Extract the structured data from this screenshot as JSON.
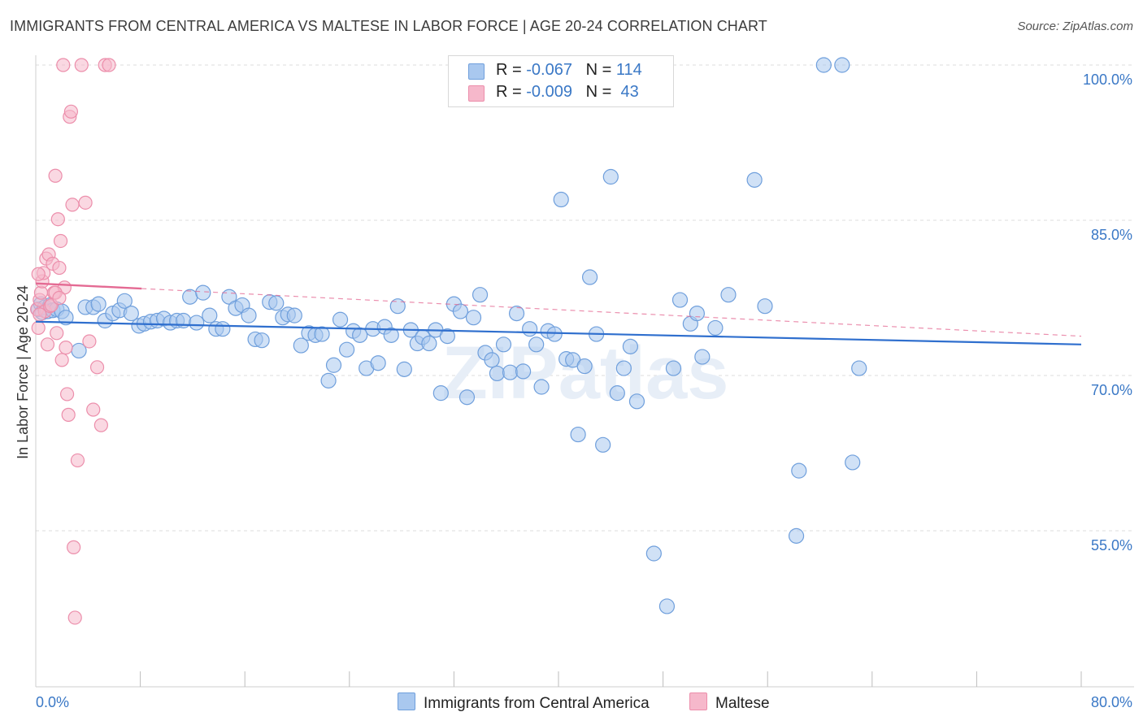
{
  "title": "IMMIGRANTS FROM CENTRAL AMERICA VS MALTESE IN LABOR FORCE | AGE 20-24 CORRELATION CHART",
  "source": "Source: ZipAtlas.com",
  "watermark": "ZIPatlas",
  "legend": {
    "rows": [
      {
        "r_label": "R =",
        "r_value": "-0.067",
        "n_label": "N =",
        "n_value": "114"
      },
      {
        "r_label": "R =",
        "r_value": "-0.009",
        "n_label": "N =",
        "n_value": "43"
      }
    ]
  },
  "bottom_legend": [
    {
      "label": "Immigrants from Central America"
    },
    {
      "label": "Maltese"
    }
  ],
  "chart_data": {
    "type": "scatter",
    "title": "IMMIGRANTS FROM CENTRAL AMERICA VS MALTESE IN LABOR FORCE | AGE 20-24 CORRELATION CHART",
    "xlabel": "",
    "ylabel": "In Labor Force | Age 20-24",
    "xlim": [
      0,
      80
    ],
    "ylim": [
      40,
      101.5
    ],
    "x_tick_labels": [
      "0.0%",
      "80.0%"
    ],
    "y_ticks": [
      100,
      85,
      70,
      55
    ],
    "y_tick_labels": [
      "100.0%",
      "85.0%",
      "70.0%",
      "55.0%"
    ],
    "grid": true,
    "legend_position": "top-center",
    "colors": {
      "blue_fill": "#a9c8ef",
      "blue_stroke": "#6f9fdc",
      "blue_line": "#2f6fce",
      "pink_fill": "#f6b8cb",
      "pink_stroke": "#ec8eab",
      "pink_line": "#e46a93",
      "tick_text": "#3a78c6"
    },
    "series": [
      {
        "name": "Immigrants from Central America",
        "color": "#a9c8ef",
        "trend": {
          "x": [
            0,
            80
          ],
          "y": [
            75.2,
            73.0
          ]
        },
        "points": [
          [
            0.2,
            76.4
          ],
          [
            0.4,
            76.9
          ],
          [
            0.5,
            76.1
          ],
          [
            0.7,
            76.6
          ],
          [
            0.9,
            76.2
          ],
          [
            1.1,
            76.8
          ],
          [
            1.3,
            76.3
          ],
          [
            1.6,
            76.4
          ],
          [
            2.0,
            76.2
          ],
          [
            2.3,
            75.6
          ],
          [
            3.3,
            72.4
          ],
          [
            3.8,
            76.6
          ],
          [
            4.4,
            76.6
          ],
          [
            4.8,
            76.9
          ],
          [
            5.3,
            75.3
          ],
          [
            5.9,
            76.0
          ],
          [
            6.4,
            76.3
          ],
          [
            6.8,
            77.2
          ],
          [
            7.3,
            76.0
          ],
          [
            7.9,
            74.8
          ],
          [
            8.3,
            75.0
          ],
          [
            8.8,
            75.2
          ],
          [
            9.3,
            75.3
          ],
          [
            9.8,
            75.5
          ],
          [
            10.3,
            75.1
          ],
          [
            10.8,
            75.3
          ],
          [
            11.3,
            75.3
          ],
          [
            11.8,
            77.6
          ],
          [
            12.3,
            75.1
          ],
          [
            12.8,
            78.0
          ],
          [
            13.3,
            75.8
          ],
          [
            13.8,
            74.5
          ],
          [
            14.3,
            74.5
          ],
          [
            14.8,
            77.6
          ],
          [
            15.3,
            76.5
          ],
          [
            15.8,
            76.8
          ],
          [
            16.3,
            75.8
          ],
          [
            16.8,
            73.5
          ],
          [
            17.3,
            73.4
          ],
          [
            17.9,
            77.1
          ],
          [
            18.4,
            77.0
          ],
          [
            18.9,
            75.6
          ],
          [
            19.3,
            75.9
          ],
          [
            19.8,
            75.8
          ],
          [
            20.3,
            72.9
          ],
          [
            20.9,
            74.1
          ],
          [
            21.4,
            73.9
          ],
          [
            21.9,
            74.0
          ],
          [
            22.4,
            69.5
          ],
          [
            22.8,
            71.0
          ],
          [
            23.3,
            75.4
          ],
          [
            23.8,
            72.5
          ],
          [
            24.3,
            74.3
          ],
          [
            24.8,
            73.9
          ],
          [
            25.3,
            70.7
          ],
          [
            25.8,
            74.5
          ],
          [
            26.2,
            71.2
          ],
          [
            26.7,
            74.7
          ],
          [
            27.2,
            73.9
          ],
          [
            27.7,
            76.7
          ],
          [
            28.2,
            70.6
          ],
          [
            28.7,
            74.4
          ],
          [
            29.2,
            73.1
          ],
          [
            29.6,
            73.7
          ],
          [
            30.1,
            73.1
          ],
          [
            30.6,
            74.4
          ],
          [
            31.0,
            68.3
          ],
          [
            31.5,
            73.8
          ],
          [
            32.0,
            76.9
          ],
          [
            32.5,
            76.2
          ],
          [
            33.0,
            67.9
          ],
          [
            33.5,
            75.6
          ],
          [
            34.0,
            77.8
          ],
          [
            34.4,
            72.2
          ],
          [
            34.9,
            71.5
          ],
          [
            35.3,
            70.2
          ],
          [
            35.8,
            73.0
          ],
          [
            36.3,
            70.3
          ],
          [
            36.8,
            76.0
          ],
          [
            37.3,
            70.4
          ],
          [
            37.8,
            74.5
          ],
          [
            38.3,
            73.0
          ],
          [
            38.7,
            68.9
          ],
          [
            39.2,
            74.3
          ],
          [
            39.7,
            74.0
          ],
          [
            40.2,
            87.0
          ],
          [
            40.6,
            71.6
          ],
          [
            41.1,
            71.5
          ],
          [
            41.5,
            64.3
          ],
          [
            42.0,
            70.9
          ],
          [
            42.4,
            79.5
          ],
          [
            42.9,
            74.0
          ],
          [
            43.4,
            63.3
          ],
          [
            44.0,
            89.2
          ],
          [
            44.5,
            68.3
          ],
          [
            45.0,
            70.7
          ],
          [
            45.5,
            72.8
          ],
          [
            46.0,
            67.5
          ],
          [
            46.8,
            100.0
          ],
          [
            47.3,
            52.8
          ],
          [
            48.3,
            47.7
          ],
          [
            48.8,
            70.7
          ],
          [
            49.3,
            77.3
          ],
          [
            50.1,
            75.0
          ],
          [
            50.6,
            76.0
          ],
          [
            51.0,
            71.8
          ],
          [
            52.0,
            74.6
          ],
          [
            53.0,
            77.8
          ],
          [
            55.0,
            88.9
          ],
          [
            55.8,
            76.7
          ],
          [
            58.2,
            54.5
          ],
          [
            58.4,
            60.8
          ],
          [
            60.3,
            100.0
          ],
          [
            61.7,
            100.0
          ],
          [
            62.5,
            61.6
          ],
          [
            63.0,
            70.7
          ]
        ]
      },
      {
        "name": "Maltese",
        "color": "#f6b8cb",
        "trend": {
          "x": [
            0,
            8.1
          ],
          "y": [
            78.9,
            78.4
          ]
        },
        "trend_extension": {
          "x": [
            8.1,
            80
          ],
          "y": [
            78.4,
            73.8
          ]
        },
        "points": [
          [
            0.1,
            76.4
          ],
          [
            0.2,
            74.6
          ],
          [
            0.3,
            77.3
          ],
          [
            0.4,
            78.0
          ],
          [
            0.5,
            79.1
          ],
          [
            0.6,
            79.9
          ],
          [
            0.7,
            76.2
          ],
          [
            0.8,
            81.3
          ],
          [
            0.9,
            73.0
          ],
          [
            1.0,
            81.7
          ],
          [
            1.1,
            76.7
          ],
          [
            1.2,
            76.8
          ],
          [
            1.3,
            80.8
          ],
          [
            1.4,
            78.0
          ],
          [
            1.5,
            89.3
          ],
          [
            1.6,
            74.1
          ],
          [
            1.7,
            85.1
          ],
          [
            1.8,
            80.4
          ],
          [
            1.9,
            83.0
          ],
          [
            2.0,
            71.5
          ],
          [
            2.1,
            100.0
          ],
          [
            2.2,
            78.5
          ],
          [
            2.3,
            72.7
          ],
          [
            2.4,
            68.2
          ],
          [
            2.5,
            66.2
          ],
          [
            2.6,
            95.0
          ],
          [
            2.7,
            95.5
          ],
          [
            2.8,
            86.5
          ],
          [
            2.9,
            53.4
          ],
          [
            3.0,
            46.6
          ],
          [
            3.2,
            61.8
          ],
          [
            3.5,
            100.0
          ],
          [
            3.8,
            86.7
          ],
          [
            4.1,
            73.3
          ],
          [
            4.4,
            66.7
          ],
          [
            4.7,
            70.8
          ],
          [
            5.0,
            65.2
          ],
          [
            5.3,
            100.0
          ],
          [
            5.6,
            100.0
          ],
          [
            0.2,
            79.8
          ],
          [
            1.5,
            78.0
          ],
          [
            0.3,
            75.9
          ],
          [
            1.8,
            77.5
          ]
        ]
      }
    ]
  }
}
